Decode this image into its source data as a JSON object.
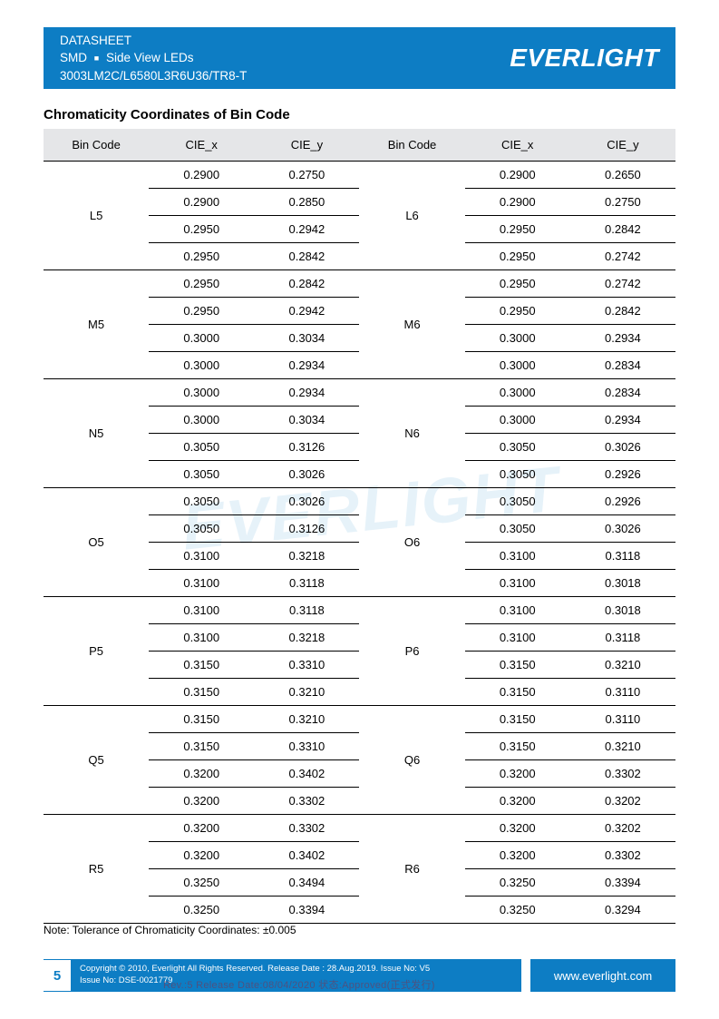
{
  "header": {
    "line1": "DATASHEET",
    "line2_a": "SMD",
    "line2_b": "Side View LEDs",
    "line3": "3003LM2C/L6580L3R6U36/TR8-T",
    "logo": "EVERLIGHT"
  },
  "section_title": "Chromaticity Coordinates of Bin Code",
  "table": {
    "headers": [
      "Bin Code",
      "CIE_x",
      "CIE_y",
      "Bin Code",
      "CIE_x",
      "CIE_y"
    ],
    "header_bg": "#e5e6e8",
    "border_color": "#000000",
    "font_size": 13,
    "groups": [
      {
        "left_code": "L5",
        "right_code": "L6",
        "rows": [
          [
            "0.2900",
            "0.2750",
            "0.2900",
            "0.2650"
          ],
          [
            "0.2900",
            "0.2850",
            "0.2900",
            "0.2750"
          ],
          [
            "0.2950",
            "0.2942",
            "0.2950",
            "0.2842"
          ],
          [
            "0.2950",
            "0.2842",
            "0.2950",
            "0.2742"
          ]
        ]
      },
      {
        "left_code": "M5",
        "right_code": "M6",
        "rows": [
          [
            "0.2950",
            "0.2842",
            "0.2950",
            "0.2742"
          ],
          [
            "0.2950",
            "0.2942",
            "0.2950",
            "0.2842"
          ],
          [
            "0.3000",
            "0.3034",
            "0.3000",
            "0.2934"
          ],
          [
            "0.3000",
            "0.2934",
            "0.3000",
            "0.2834"
          ]
        ]
      },
      {
        "left_code": "N5",
        "right_code": "N6",
        "rows": [
          [
            "0.3000",
            "0.2934",
            "0.3000",
            "0.2834"
          ],
          [
            "0.3000",
            "0.3034",
            "0.3000",
            "0.2934"
          ],
          [
            "0.3050",
            "0.3126",
            "0.3050",
            "0.3026"
          ],
          [
            "0.3050",
            "0.3026",
            "0.3050",
            "0.2926"
          ]
        ]
      },
      {
        "left_code": "O5",
        "right_code": "O6",
        "rows": [
          [
            "0.3050",
            "0.3026",
            "0.3050",
            "0.2926"
          ],
          [
            "0.3050",
            "0.3126",
            "0.3050",
            "0.3026"
          ],
          [
            "0.3100",
            "0.3218",
            "0.3100",
            "0.3118"
          ],
          [
            "0.3100",
            "0.3118",
            "0.3100",
            "0.3018"
          ]
        ]
      },
      {
        "left_code": "P5",
        "right_code": "P6",
        "rows": [
          [
            "0.3100",
            "0.3118",
            "0.3100",
            "0.3018"
          ],
          [
            "0.3100",
            "0.3218",
            "0.3100",
            "0.3118"
          ],
          [
            "0.3150",
            "0.3310",
            "0.3150",
            "0.3210"
          ],
          [
            "0.3150",
            "0.3210",
            "0.3150",
            "0.3110"
          ]
        ]
      },
      {
        "left_code": "Q5",
        "right_code": "Q6",
        "rows": [
          [
            "0.3150",
            "0.3210",
            "0.3150",
            "0.3110"
          ],
          [
            "0.3150",
            "0.3310",
            "0.3150",
            "0.3210"
          ],
          [
            "0.3200",
            "0.3402",
            "0.3200",
            "0.3302"
          ],
          [
            "0.3200",
            "0.3302",
            "0.3200",
            "0.3202"
          ]
        ]
      },
      {
        "left_code": "R5",
        "right_code": "R6",
        "rows": [
          [
            "0.3200",
            "0.3302",
            "0.3200",
            "0.3202"
          ],
          [
            "0.3200",
            "0.3402",
            "0.3200",
            "0.3302"
          ],
          [
            "0.3250",
            "0.3494",
            "0.3250",
            "0.3394"
          ],
          [
            "0.3250",
            "0.3394",
            "0.3250",
            "0.3294"
          ]
        ]
      }
    ]
  },
  "note": "Note: Tolerance of Chromaticity Coordinates: ±0.005",
  "footer": {
    "page": "5",
    "line1": "Copyright © 2010, Everlight All Rights Reserved. Release Date : 28.Aug.2019. Issue No: V5",
    "line2": "Issue No: DSE-0021779",
    "url": "www.everlight.com"
  },
  "watermark": "EVERLIGHT",
  "stamp": "Rev.:5     Release Date:08/04/2020     状态:Approved(正式发行)",
  "colors": {
    "brand": "#0d7dc4",
    "text": "#000000",
    "bg": "#ffffff"
  }
}
